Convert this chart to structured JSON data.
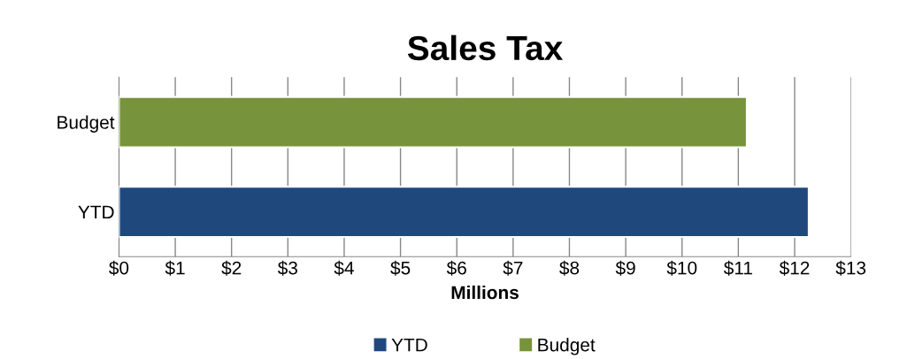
{
  "chart_data": {
    "type": "bar",
    "orientation": "horizontal",
    "title": "Sales Tax",
    "xlabel": "Millions",
    "categories": [
      "Budget",
      "YTD"
    ],
    "series": [
      {
        "name": "YTD",
        "color": "#1f497d",
        "values": [
          null,
          12.25
        ]
      },
      {
        "name": "Budget",
        "color": "#77933c",
        "values": [
          11.15,
          null
        ]
      }
    ],
    "xlim": [
      0,
      13
    ],
    "xticks": [
      {
        "value": 0,
        "label": "$0"
      },
      {
        "value": 1,
        "label": "$1"
      },
      {
        "value": 2,
        "label": "$2"
      },
      {
        "value": 3,
        "label": "$3"
      },
      {
        "value": 4,
        "label": "$4"
      },
      {
        "value": 5,
        "label": "$5"
      },
      {
        "value": 6,
        "label": "$6"
      },
      {
        "value": 7,
        "label": "$7"
      },
      {
        "value": 8,
        "label": "$8"
      },
      {
        "value": 9,
        "label": "$9"
      },
      {
        "value": 10,
        "label": "$10"
      },
      {
        "value": 11,
        "label": "$11"
      },
      {
        "value": 12,
        "label": "$12"
      },
      {
        "value": 13,
        "label": "$13"
      }
    ],
    "grid": "x",
    "legend": "bottom"
  }
}
